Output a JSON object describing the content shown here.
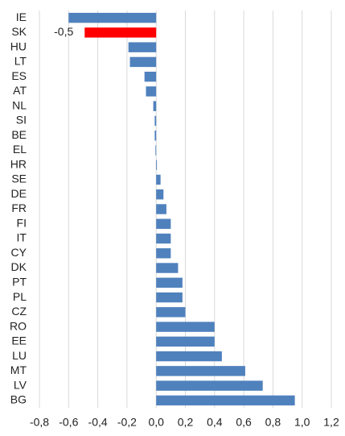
{
  "chart_data": {
    "type": "bar",
    "orientation": "horizontal",
    "categories": [
      "IE",
      "SK",
      "HU",
      "LT",
      "ES",
      "AT",
      "NL",
      "SI",
      "BE",
      "EL",
      "HR",
      "SE",
      "DE",
      "FR",
      "FI",
      "IT",
      "CY",
      "DK",
      "PT",
      "PL",
      "CZ",
      "RO",
      "EE",
      "LU",
      "MT",
      "LV",
      "BG"
    ],
    "values": [
      -0.6,
      -0.49,
      -0.19,
      -0.18,
      -0.08,
      -0.07,
      -0.02,
      -0.01,
      -0.01,
      -0.005,
      0.005,
      0.03,
      0.05,
      0.07,
      0.1,
      0.1,
      0.1,
      0.15,
      0.18,
      0.18,
      0.2,
      0.4,
      0.4,
      0.45,
      0.61,
      0.73,
      0.95
    ],
    "value_labels": [
      null,
      "-0,5",
      null,
      null,
      null,
      null,
      null,
      null,
      null,
      null,
      null,
      null,
      null,
      null,
      null,
      null,
      null,
      null,
      null,
      null,
      null,
      null,
      null,
      null,
      null,
      null,
      null
    ],
    "colors": [
      "#4f81bd",
      "#ff0000",
      "#4f81bd",
      "#4f81bd",
      "#4f81bd",
      "#4f81bd",
      "#4f81bd",
      "#4f81bd",
      "#4f81bd",
      "#4f81bd",
      "#4f81bd",
      "#4f81bd",
      "#4f81bd",
      "#4f81bd",
      "#4f81bd",
      "#4f81bd",
      "#4f81bd",
      "#4f81bd",
      "#4f81bd",
      "#4f81bd",
      "#4f81bd",
      "#4f81bd",
      "#4f81bd",
      "#4f81bd",
      "#4f81bd",
      "#4f81bd",
      "#4f81bd"
    ],
    "xlim": [
      -0.8,
      1.2
    ],
    "xticks": [
      {
        "value": -0.8,
        "label": "-0,8"
      },
      {
        "value": -0.6,
        "label": "-0,6"
      },
      {
        "value": -0.4,
        "label": "-0,4"
      },
      {
        "value": -0.2,
        "label": "-0,2"
      },
      {
        "value": 0,
        "label": "0,0"
      },
      {
        "value": 0.2,
        "label": "0,2"
      },
      {
        "value": 0.4,
        "label": "0,4"
      },
      {
        "value": 0.6,
        "label": "0,6"
      },
      {
        "value": 0.8,
        "label": "0,8"
      },
      {
        "value": 1,
        "label": "1,0"
      },
      {
        "value": 1.2,
        "label": "1,2"
      }
    ],
    "grid": true
  }
}
